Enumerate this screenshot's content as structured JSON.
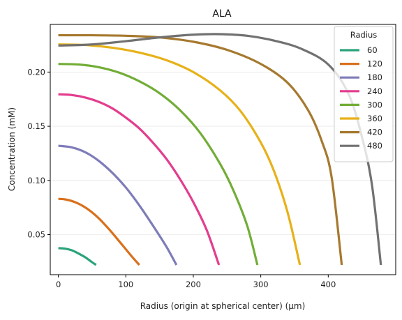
{
  "chart_data": {
    "type": "line",
    "title": "ALA",
    "xlabel": "Radius (origin at spherical center) (μm)",
    "ylabel": "Concentration (mM)",
    "xlim": [
      -12,
      500
    ],
    "ylim": [
      0.013,
      0.244
    ],
    "x_ticks": [
      0,
      100,
      200,
      300,
      400
    ],
    "y_ticks": [
      0.05,
      0.1,
      0.15,
      0.2
    ],
    "y_tick_labels": [
      "0.05",
      "0.10",
      "0.15",
      "0.20"
    ],
    "grid": "horizontal-faint",
    "legend": {
      "title": "Radius",
      "placement": "top-right"
    },
    "series": [
      {
        "name": "60",
        "color": "#2aa37a",
        "x": [
          0,
          10,
          20,
          30,
          40,
          50,
          56
        ],
        "y": [
          0.0375,
          0.037,
          0.0355,
          0.0325,
          0.029,
          0.0245,
          0.022
        ]
      },
      {
        "name": "120",
        "color": "#d9701c",
        "x": [
          0,
          10,
          20,
          30,
          40,
          50,
          60,
          70,
          80,
          90,
          100,
          110,
          120
        ],
        "y": [
          0.083,
          0.0825,
          0.081,
          0.0785,
          0.075,
          0.0705,
          0.065,
          0.0585,
          0.0515,
          0.044,
          0.0365,
          0.029,
          0.022
        ]
      },
      {
        "name": "180",
        "color": "#7e7cb8",
        "x": [
          0,
          20,
          40,
          60,
          80,
          100,
          120,
          140,
          160,
          175
        ],
        "y": [
          0.132,
          0.1305,
          0.126,
          0.118,
          0.107,
          0.0935,
          0.077,
          0.0585,
          0.039,
          0.022
        ]
      },
      {
        "name": "240",
        "color": "#e33d8e",
        "x": [
          0,
          20,
          40,
          60,
          80,
          100,
          120,
          140,
          160,
          180,
          200,
          220,
          238
        ],
        "y": [
          0.1795,
          0.1788,
          0.1765,
          0.1725,
          0.1665,
          0.158,
          0.148,
          0.135,
          0.12,
          0.1015,
          0.08,
          0.054,
          0.022
        ]
      },
      {
        "name": "300",
        "color": "#72ad37",
        "x": [
          0,
          30,
          60,
          90,
          120,
          150,
          180,
          210,
          240,
          260,
          280,
          295
        ],
        "y": [
          0.2075,
          0.207,
          0.2045,
          0.1995,
          0.1915,
          0.1805,
          0.165,
          0.144,
          0.115,
          0.09,
          0.058,
          0.022
        ]
      },
      {
        "name": "360",
        "color": "#e7b118",
        "x": [
          0,
          40,
          80,
          120,
          160,
          200,
          240,
          270,
          300,
          320,
          340,
          358
        ],
        "y": [
          0.2255,
          0.225,
          0.2225,
          0.218,
          0.211,
          0.2,
          0.183,
          0.164,
          0.135,
          0.108,
          0.07,
          0.022
        ]
      },
      {
        "name": "420",
        "color": "#a6792f",
        "x": [
          0,
          50,
          100,
          150,
          200,
          250,
          300,
          340,
          370,
          390,
          405,
          420
        ],
        "y": [
          0.234,
          0.234,
          0.2335,
          0.232,
          0.228,
          0.2205,
          0.2075,
          0.19,
          0.165,
          0.137,
          0.103,
          0.022
        ]
      },
      {
        "name": "480",
        "color": "#717171",
        "x": [
          0,
          50,
          100,
          150,
          200,
          240,
          280,
          320,
          360,
          400,
          430,
          450,
          465,
          478
        ],
        "y": [
          0.2245,
          0.2255,
          0.2285,
          0.232,
          0.2345,
          0.235,
          0.2335,
          0.229,
          0.2215,
          0.207,
          0.18,
          0.14,
          0.095,
          0.022
        ]
      }
    ]
  }
}
